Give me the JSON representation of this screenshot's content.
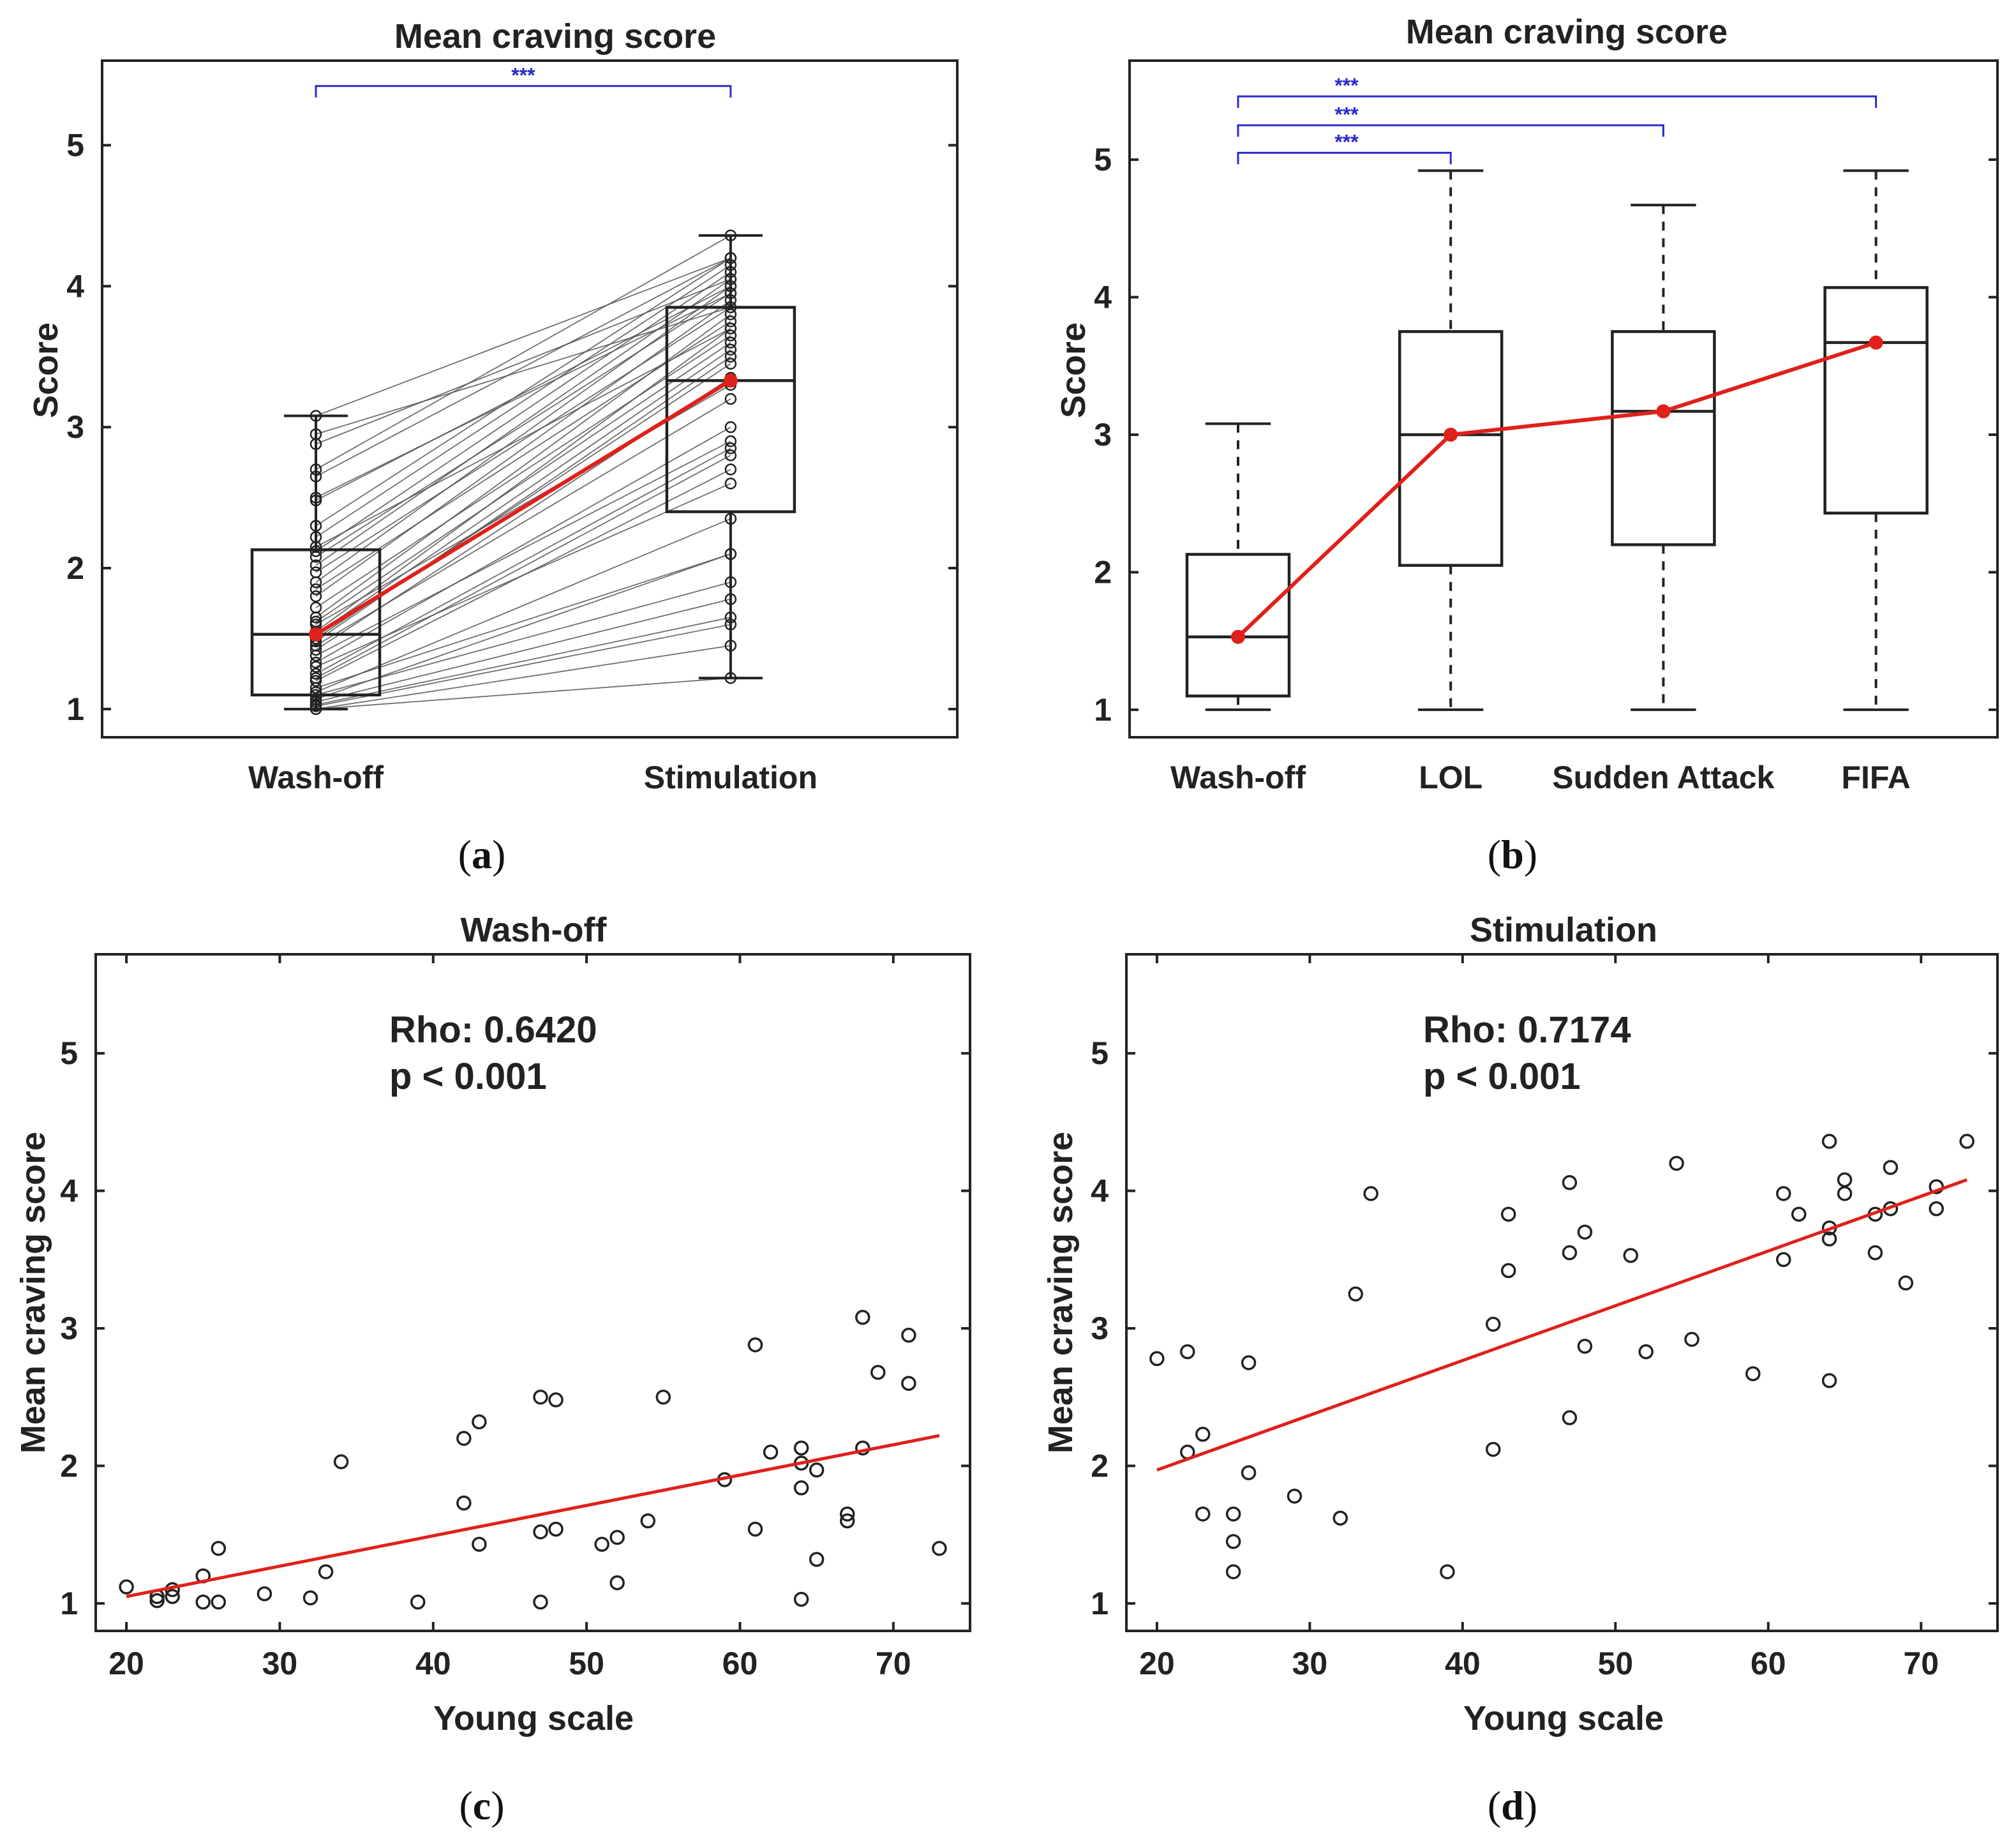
{
  "colors": {
    "axis": "#222222",
    "accent": "#e0201b",
    "sig": "#2a2ad0",
    "thin": "#555555"
  },
  "panels": {
    "a": {
      "caption_letter": "a",
      "chart_data": {
        "type": "box",
        "title": "Mean craving score",
        "ylabel": "Score",
        "categories": [
          "Wash-off",
          "Stimulation"
        ],
        "ylim": [
          0.8,
          5.6
        ],
        "yticks": [
          1,
          2,
          3,
          4,
          5
        ],
        "boxes": [
          {
            "q1": 1.1,
            "median": 1.53,
            "q3": 2.13,
            "min": 1.0,
            "max": 3.08,
            "mean": 1.53
          },
          {
            "q1": 2.4,
            "median": 3.33,
            "q3": 3.85,
            "min": 1.22,
            "max": 4.36,
            "mean": 3.33
          }
        ],
        "paired_wash": [
          1.0,
          1.0,
          1.02,
          1.03,
          1.05,
          1.07,
          1.1,
          1.12,
          1.15,
          1.2,
          1.22,
          1.25,
          1.3,
          1.33,
          1.38,
          1.42,
          1.45,
          1.48,
          1.5,
          1.53,
          1.55,
          1.6,
          1.62,
          1.65,
          1.72,
          1.8,
          1.85,
          1.9,
          1.97,
          2.02,
          2.08,
          2.12,
          2.15,
          2.22,
          2.3,
          2.48,
          2.5,
          2.65,
          2.7,
          2.88,
          2.95,
          3.08
        ],
        "paired_stim": [
          1.22,
          1.45,
          1.6,
          1.65,
          1.78,
          2.1,
          1.9,
          2.35,
          2.1,
          2.7,
          2.8,
          2.85,
          2.6,
          3.0,
          2.9,
          3.35,
          3.2,
          3.5,
          3.45,
          3.55,
          3.7,
          3.3,
          3.6,
          3.8,
          3.65,
          3.9,
          3.75,
          4.0,
          3.85,
          4.05,
          3.95,
          4.1,
          3.7,
          4.15,
          4.2,
          4.0,
          3.95,
          4.2,
          4.36,
          4.05,
          3.85,
          4.2
        ],
        "significance": [
          {
            "from": 0,
            "to": 1,
            "label": "***",
            "y": 5.42
          }
        ]
      }
    },
    "b": {
      "caption_letter": "b",
      "chart_data": {
        "type": "box",
        "title": "Mean craving score",
        "ylabel": "Score",
        "categories": [
          "Wash-off",
          "LOL",
          "Sudden Attack",
          "FIFA"
        ],
        "ylim": [
          0.8,
          5.72
        ],
        "yticks": [
          1,
          2,
          3,
          4,
          5
        ],
        "boxes": [
          {
            "q1": 1.1,
            "median": 1.53,
            "q3": 2.13,
            "min": 1.0,
            "max": 3.08,
            "mean": 1.53
          },
          {
            "q1": 2.05,
            "median": 3.0,
            "q3": 3.75,
            "min": 1.0,
            "max": 4.92,
            "mean": 3.0
          },
          {
            "q1": 2.2,
            "median": 3.17,
            "q3": 3.75,
            "min": 1.0,
            "max": 4.67,
            "mean": 3.17
          },
          {
            "q1": 2.43,
            "median": 3.67,
            "q3": 4.07,
            "min": 1.0,
            "max": 4.92,
            "mean": 3.67
          }
        ],
        "significance": [
          {
            "from": 0,
            "to": 1,
            "label": "***",
            "y": 5.05
          },
          {
            "from": 0,
            "to": 2,
            "label": "***",
            "y": 5.25
          },
          {
            "from": 0,
            "to": 3,
            "label": "***",
            "y": 5.46
          }
        ]
      }
    },
    "c": {
      "caption_letter": "c",
      "stat_rho": "Rho: 0.6420",
      "stat_p": "p < 0.001",
      "chart_data": {
        "type": "scatter",
        "title": "Wash-off",
        "xlabel": "Young scale",
        "ylabel": "Mean craving score",
        "xlim": [
          18,
          75
        ],
        "ylim": [
          0.8,
          5.72
        ],
        "xticks": [
          20,
          30,
          40,
          50,
          60,
          70
        ],
        "yticks": [
          1,
          2,
          3,
          4,
          5
        ],
        "points": [
          [
            20,
            1.12
          ],
          [
            22,
            1.02
          ],
          [
            22,
            1.05
          ],
          [
            23,
            1.05
          ],
          [
            23,
            1.1
          ],
          [
            25,
            1.2
          ],
          [
            25,
            1.01
          ],
          [
            26,
            1.01
          ],
          [
            26,
            1.4
          ],
          [
            29,
            1.07
          ],
          [
            32,
            1.04
          ],
          [
            33,
            1.23
          ],
          [
            34,
            2.03
          ],
          [
            39,
            1.01
          ],
          [
            42,
            2.2
          ],
          [
            42,
            1.73
          ],
          [
            43,
            2.32
          ],
          [
            43,
            1.43
          ],
          [
            47,
            2.5
          ],
          [
            47,
            1.52
          ],
          [
            47,
            1.01
          ],
          [
            48,
            2.48
          ],
          [
            48,
            1.54
          ],
          [
            51,
            1.43
          ],
          [
            52,
            1.48
          ],
          [
            52,
            1.15
          ],
          [
            54,
            1.6
          ],
          [
            55,
            2.5
          ],
          [
            59,
            1.9
          ],
          [
            61,
            2.88
          ],
          [
            61,
            1.54
          ],
          [
            62,
            2.1
          ],
          [
            64,
            2.13
          ],
          [
            64,
            2.02
          ],
          [
            64,
            1.84
          ],
          [
            64,
            1.03
          ],
          [
            65,
            1.97
          ],
          [
            65,
            1.32
          ],
          [
            67,
            1.65
          ],
          [
            67,
            1.6
          ],
          [
            68,
            3.08
          ],
          [
            68,
            2.13
          ],
          [
            69,
            2.68
          ],
          [
            71,
            2.95
          ],
          [
            71,
            2.6
          ],
          [
            73,
            1.4
          ]
        ],
        "fit": {
          "x": [
            20,
            73
          ],
          "y": [
            1.05,
            2.22
          ]
        }
      }
    },
    "d": {
      "caption_letter": "d",
      "stat_rho": "Rho: 0.7174",
      "stat_p": "p < 0.001",
      "chart_data": {
        "type": "scatter",
        "title": "Stimulation",
        "xlabel": "Young scale",
        "ylabel": "Mean craving score",
        "xlim": [
          18,
          75
        ],
        "ylim": [
          0.8,
          5.72
        ],
        "xticks": [
          20,
          30,
          40,
          50,
          60,
          70
        ],
        "yticks": [
          1,
          2,
          3,
          4,
          5
        ],
        "points": [
          [
            20,
            2.78
          ],
          [
            22,
            2.83
          ],
          [
            22,
            2.1
          ],
          [
            23,
            2.23
          ],
          [
            23,
            1.65
          ],
          [
            25,
            1.65
          ],
          [
            25,
            1.45
          ],
          [
            25,
            1.23
          ],
          [
            26,
            2.75
          ],
          [
            26,
            1.95
          ],
          [
            29,
            1.78
          ],
          [
            32,
            1.62
          ],
          [
            33,
            3.25
          ],
          [
            34,
            3.98
          ],
          [
            39,
            1.23
          ],
          [
            42,
            3.03
          ],
          [
            42,
            2.12
          ],
          [
            43,
            3.83
          ],
          [
            43,
            3.42
          ],
          [
            47,
            4.06
          ],
          [
            47,
            3.55
          ],
          [
            47,
            2.35
          ],
          [
            48,
            3.7
          ],
          [
            48,
            2.87
          ],
          [
            51,
            3.53
          ],
          [
            52,
            2.83
          ],
          [
            54,
            4.2
          ],
          [
            55,
            2.92
          ],
          [
            59,
            2.67
          ],
          [
            61,
            3.98
          ],
          [
            61,
            3.5
          ],
          [
            62,
            3.83
          ],
          [
            64,
            4.36
          ],
          [
            64,
            3.73
          ],
          [
            64,
            3.65
          ],
          [
            64,
            2.62
          ],
          [
            65,
            4.08
          ],
          [
            65,
            3.98
          ],
          [
            67,
            3.83
          ],
          [
            67,
            3.55
          ],
          [
            68,
            4.17
          ],
          [
            68,
            3.87
          ],
          [
            69,
            3.33
          ],
          [
            71,
            4.03
          ],
          [
            71,
            3.87
          ],
          [
            73,
            4.36
          ]
        ],
        "fit": {
          "x": [
            20,
            73
          ],
          "y": [
            1.97,
            4.08
          ]
        }
      }
    }
  }
}
